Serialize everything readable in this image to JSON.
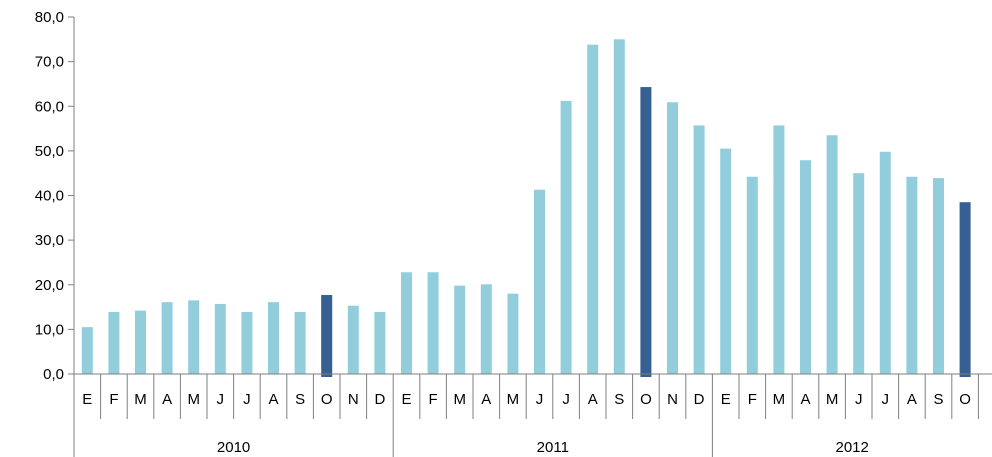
{
  "chart_data": {
    "type": "bar",
    "categories": [
      "E",
      "F",
      "M",
      "A",
      "M",
      "J",
      "J",
      "A",
      "S",
      "O",
      "N",
      "D",
      "E",
      "F",
      "M",
      "A",
      "M",
      "J",
      "J",
      "A",
      "S",
      "O",
      "N",
      "D",
      "E",
      "F",
      "M",
      "A",
      "M",
      "J",
      "J",
      "A",
      "S",
      "O"
    ],
    "groups": [
      {
        "label": "2010",
        "count": 12
      },
      {
        "label": "2011",
        "count": 12
      },
      {
        "label": "2012",
        "count": 10
      }
    ],
    "values": [
      10.5,
      13.9,
      14.2,
      16.1,
      16.5,
      15.7,
      13.9,
      16.1,
      13.9,
      17.7,
      15.3,
      13.9,
      22.8,
      22.8,
      19.8,
      20.1,
      18.0,
      41.3,
      61.2,
      73.8,
      75.0,
      64.3,
      60.9,
      55.7,
      50.5,
      44.2,
      55.7,
      47.9,
      53.5,
      45.0,
      49.8,
      44.2,
      43.9,
      38.5
    ],
    "highlight_indices": [
      9,
      21,
      33
    ],
    "ylim": [
      0,
      80
    ],
    "ytick_step": 10,
    "ytick_labels": [
      "0,0",
      "10,0",
      "20,0",
      "30,0",
      "40,0",
      "50,0",
      "60,0",
      "70,0",
      "80,0"
    ],
    "grid": false,
    "colors": {
      "normal": "#92cddc",
      "highlight": "#366092",
      "axis": "#7f7f7f"
    }
  }
}
